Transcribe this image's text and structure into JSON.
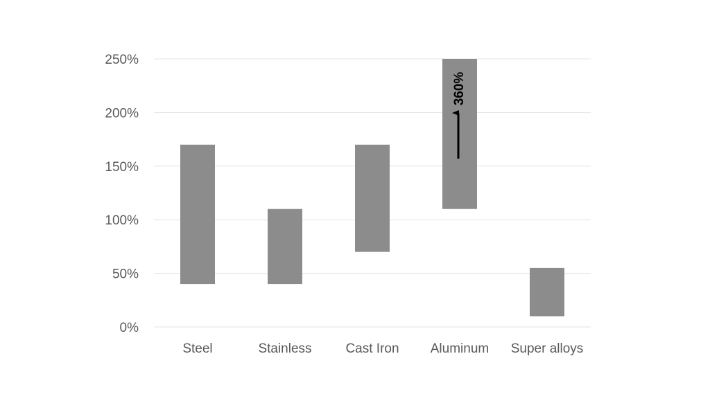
{
  "colors": {
    "bar": "#8c8c8c",
    "grid": "#e3e3e3",
    "text": "#595959",
    "annotation": "#000000"
  },
  "chart_data": {
    "type": "bar",
    "subtype": "floating-range",
    "title": "",
    "xlabel": "",
    "ylabel": "",
    "categories": [
      "Steel",
      "Stainless",
      "Cast Iron",
      "Aluminum",
      "Super alloys"
    ],
    "ranges": [
      {
        "category": "Steel",
        "low": 40,
        "high": 170
      },
      {
        "category": "Stainless",
        "low": 40,
        "high": 110
      },
      {
        "category": "Cast Iron",
        "low": 70,
        "high": 170
      },
      {
        "category": "Aluminum",
        "low": 110,
        "high": 360
      },
      {
        "category": "Super alloys",
        "low": 10,
        "high": 55
      }
    ],
    "ylim": [
      0,
      250
    ],
    "yticks": [
      0,
      50,
      100,
      150,
      200,
      250
    ],
    "ytick_labels": [
      "0%",
      "50%",
      "100%",
      "150%",
      "200%",
      "250%"
    ],
    "grid": true,
    "legend": "none",
    "annotations": [
      {
        "category": "Aluminum",
        "text": "360%",
        "arrow": "up"
      }
    ]
  }
}
